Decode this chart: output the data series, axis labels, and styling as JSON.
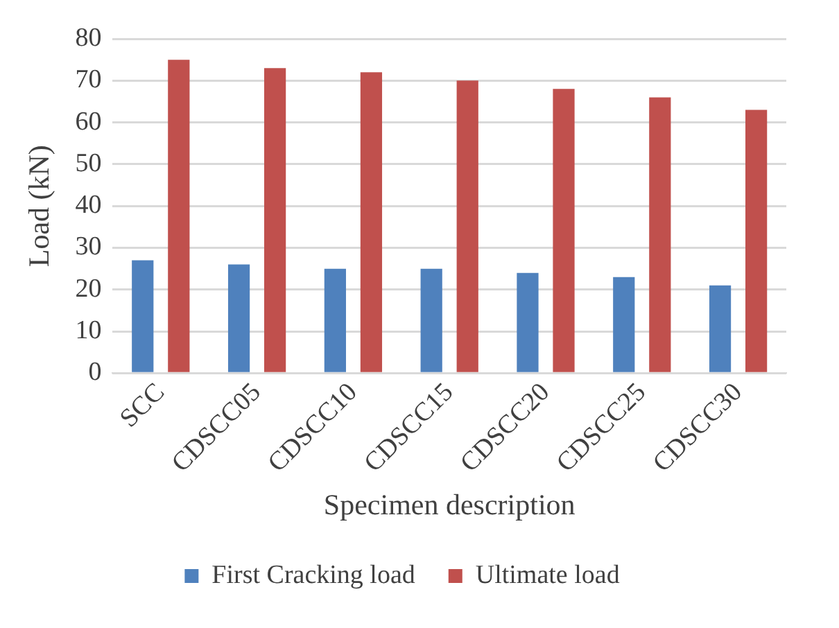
{
  "chart_data": {
    "type": "bar",
    "xlabel": "Specimen description",
    "ylabel": "Load (kN)",
    "categories": [
      "SCC",
      "CDSCC05",
      "CDSCC10",
      "CDSCC15",
      "CDSCC20",
      "CDSCC25",
      "CDSCC30"
    ],
    "series": [
      {
        "name": "First Cracking load",
        "color": "#4f81bd",
        "values": [
          27,
          26,
          25,
          25,
          24,
          23,
          21
        ]
      },
      {
        "name": "Ultimate load",
        "color": "#c0504d",
        "values": [
          75,
          73,
          72,
          70,
          68,
          66,
          63
        ]
      }
    ],
    "ylim": [
      0,
      80
    ],
    "yticks": [
      0,
      10,
      20,
      30,
      40,
      50,
      60,
      70,
      80
    ],
    "grid": "y",
    "legend": "bottom"
  }
}
